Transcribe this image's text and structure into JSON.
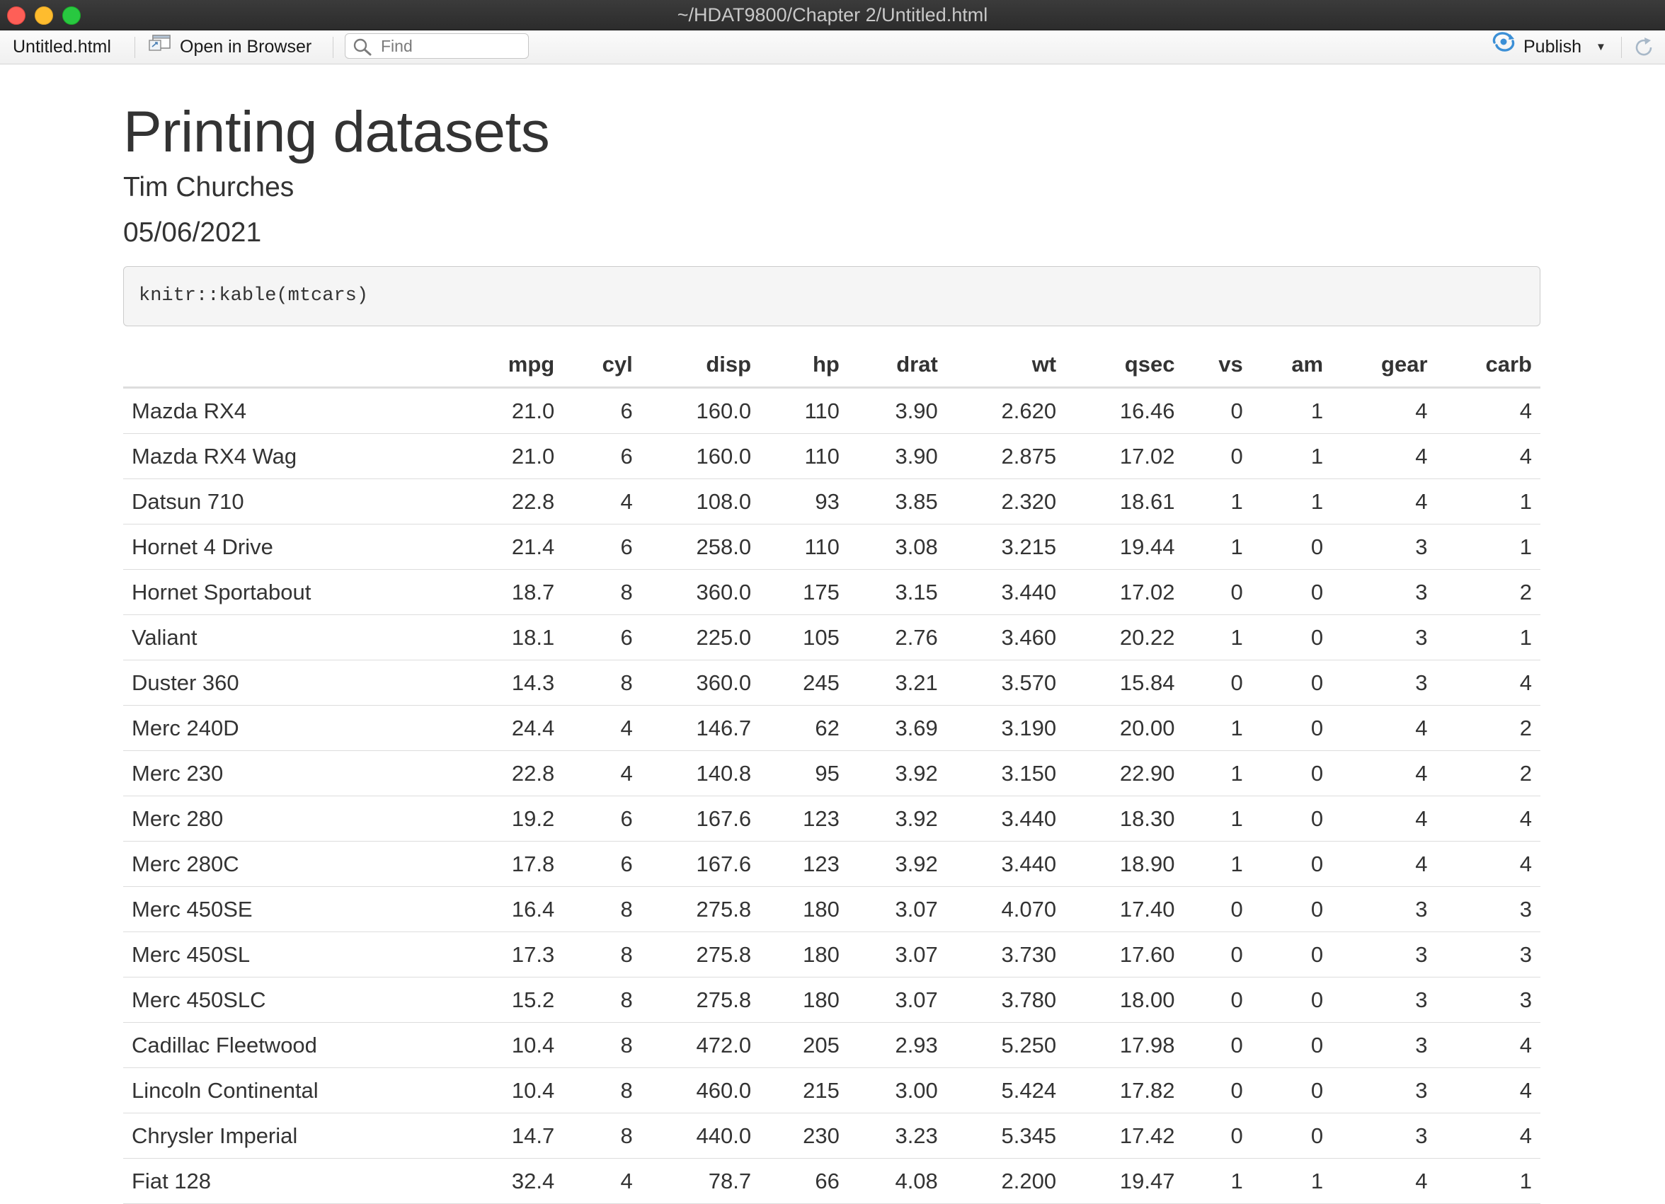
{
  "window": {
    "title": "~/HDAT9800/Chapter 2/Untitled.html"
  },
  "toolbar": {
    "file_label": "Untitled.html",
    "open_browser_label": "Open in Browser",
    "find_placeholder": "Find",
    "publish_label": "Publish"
  },
  "icons": {
    "open_browser": "browser-window-icon",
    "find": "search-icon",
    "publish": "publish-icon",
    "refresh": "refresh-icon"
  },
  "document": {
    "title": "Printing datasets",
    "author": "Tim Churches",
    "date": "05/06/2021",
    "code": "knitr::kable(mtcars)"
  },
  "table": {
    "columns": [
      "",
      "mpg",
      "cyl",
      "disp",
      "hp",
      "drat",
      "wt",
      "qsec",
      "vs",
      "am",
      "gear",
      "carb"
    ],
    "rows": [
      [
        "Mazda RX4",
        "21.0",
        "6",
        "160.0",
        "110",
        "3.90",
        "2.620",
        "16.46",
        "0",
        "1",
        "4",
        "4"
      ],
      [
        "Mazda RX4 Wag",
        "21.0",
        "6",
        "160.0",
        "110",
        "3.90",
        "2.875",
        "17.02",
        "0",
        "1",
        "4",
        "4"
      ],
      [
        "Datsun 710",
        "22.8",
        "4",
        "108.0",
        "93",
        "3.85",
        "2.320",
        "18.61",
        "1",
        "1",
        "4",
        "1"
      ],
      [
        "Hornet 4 Drive",
        "21.4",
        "6",
        "258.0",
        "110",
        "3.08",
        "3.215",
        "19.44",
        "1",
        "0",
        "3",
        "1"
      ],
      [
        "Hornet Sportabout",
        "18.7",
        "8",
        "360.0",
        "175",
        "3.15",
        "3.440",
        "17.02",
        "0",
        "0",
        "3",
        "2"
      ],
      [
        "Valiant",
        "18.1",
        "6",
        "225.0",
        "105",
        "2.76",
        "3.460",
        "20.22",
        "1",
        "0",
        "3",
        "1"
      ],
      [
        "Duster 360",
        "14.3",
        "8",
        "360.0",
        "245",
        "3.21",
        "3.570",
        "15.84",
        "0",
        "0",
        "3",
        "4"
      ],
      [
        "Merc 240D",
        "24.4",
        "4",
        "146.7",
        "62",
        "3.69",
        "3.190",
        "20.00",
        "1",
        "0",
        "4",
        "2"
      ],
      [
        "Merc 230",
        "22.8",
        "4",
        "140.8",
        "95",
        "3.92",
        "3.150",
        "22.90",
        "1",
        "0",
        "4",
        "2"
      ],
      [
        "Merc 280",
        "19.2",
        "6",
        "167.6",
        "123",
        "3.92",
        "3.440",
        "18.30",
        "1",
        "0",
        "4",
        "4"
      ],
      [
        "Merc 280C",
        "17.8",
        "6",
        "167.6",
        "123",
        "3.92",
        "3.440",
        "18.90",
        "1",
        "0",
        "4",
        "4"
      ],
      [
        "Merc 450SE",
        "16.4",
        "8",
        "275.8",
        "180",
        "3.07",
        "4.070",
        "17.40",
        "0",
        "0",
        "3",
        "3"
      ],
      [
        "Merc 450SL",
        "17.3",
        "8",
        "275.8",
        "180",
        "3.07",
        "3.730",
        "17.60",
        "0",
        "0",
        "3",
        "3"
      ],
      [
        "Merc 450SLC",
        "15.2",
        "8",
        "275.8",
        "180",
        "3.07",
        "3.780",
        "18.00",
        "0",
        "0",
        "3",
        "3"
      ],
      [
        "Cadillac Fleetwood",
        "10.4",
        "8",
        "472.0",
        "205",
        "2.93",
        "5.250",
        "17.98",
        "0",
        "0",
        "3",
        "4"
      ],
      [
        "Lincoln Continental",
        "10.4",
        "8",
        "460.0",
        "215",
        "3.00",
        "5.424",
        "17.82",
        "0",
        "0",
        "3",
        "4"
      ],
      [
        "Chrysler Imperial",
        "14.7",
        "8",
        "440.0",
        "230",
        "3.23",
        "5.345",
        "17.42",
        "0",
        "0",
        "3",
        "4"
      ],
      [
        "Fiat 128",
        "32.4",
        "4",
        "78.7",
        "66",
        "4.08",
        "2.200",
        "19.47",
        "1",
        "1",
        "4",
        "1"
      ]
    ]
  }
}
